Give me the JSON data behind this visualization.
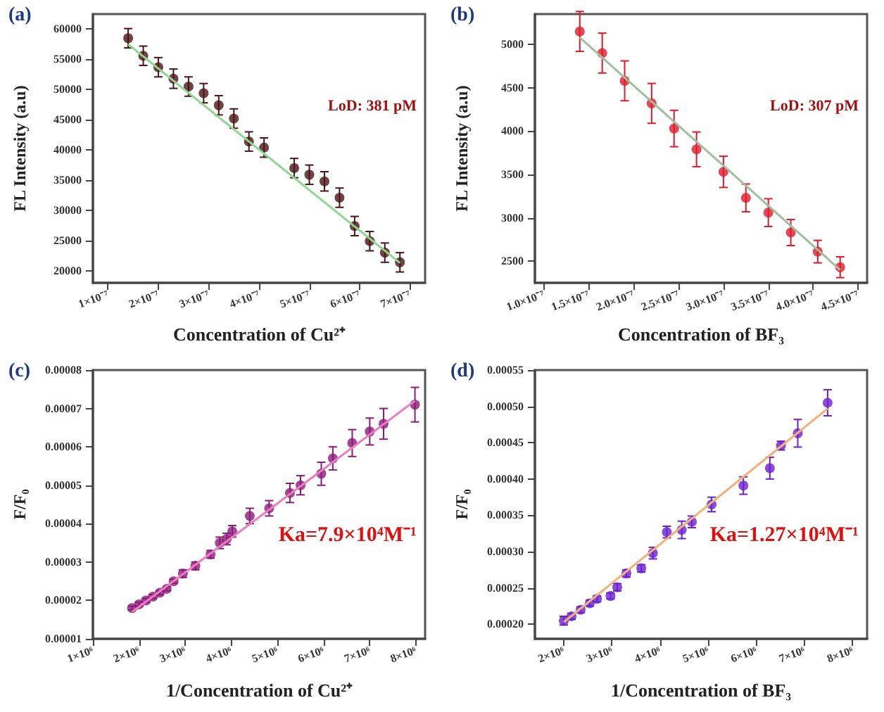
{
  "chart_data": [
    {
      "type": "scatter",
      "xlabel": "Concentration of Cu²⁺",
      "ylabel": "FL Intensity (a.u)",
      "annotations": [
        "(a)",
        "LoD: 381 pM"
      ],
      "marker": "circle",
      "grid": false,
      "xlim": [
        7e-08,
        7.3e-07
      ],
      "xticks": [
        {
          "value": 1e-07,
          "label": "1×10⁻⁷"
        },
        {
          "value": 2e-07,
          "label": "2×10⁻⁷"
        },
        {
          "value": 3e-07,
          "label": "3×10⁻⁷"
        },
        {
          "value": 4e-07,
          "label": "4×10⁻⁷"
        },
        {
          "value": 5e-07,
          "label": "5×10⁻⁷"
        },
        {
          "value": 6e-07,
          "label": "6×10⁻⁷"
        },
        {
          "value": 7e-07,
          "label": "7×10⁻⁷"
        }
      ],
      "ylim": [
        18000,
        62500
      ],
      "yticks": [
        20000,
        25000,
        30000,
        35000,
        40000,
        45000,
        50000,
        55000,
        60000
      ],
      "series": [
        {
          "color": "#4a1414",
          "x": [
            1.4e-07,
            1.7e-07,
            2e-07,
            2.3e-07,
            2.6e-07,
            2.9e-07,
            3.2e-07,
            3.5e-07,
            3.8e-07,
            4.1e-07,
            4.7e-07,
            5e-07,
            5.3e-07,
            5.6e-07,
            5.9e-07,
            6.2e-07,
            6.5e-07,
            6.8e-07
          ],
          "values": [
            58500,
            55600,
            53700,
            51800,
            50500,
            49400,
            47400,
            45200,
            41400,
            40400,
            37000,
            35900,
            34800,
            32100,
            27400,
            24900,
            23000,
            21400
          ],
          "errors": [
            1600,
            1600,
            1600,
            1600,
            1600,
            1600,
            1600,
            1600,
            1600,
            1600,
            1600,
            1600,
            1600,
            1600,
            1600,
            1600,
            1600,
            1600
          ]
        },
        {
          "type": "line",
          "marker": "none",
          "color": "#8fd88f",
          "x": [
            1.4e-07,
            6.8e-07
          ],
          "values": [
            57500,
            21300
          ]
        }
      ]
    },
    {
      "type": "scatter",
      "xlabel": "Concentration of BF₃",
      "ylabel": "FL Intensity (a.u)",
      "annotations": [
        "(b)",
        "LoD: 307 pM"
      ],
      "marker": "circle",
      "grid": false,
      "xlim": [
        9e-08,
        4.6e-07
      ],
      "xticks": [
        {
          "value": 1e-07,
          "label": "1.0×10⁻⁷"
        },
        {
          "value": 1.5e-07,
          "label": "1.5×10⁻⁷"
        },
        {
          "value": 2e-07,
          "label": "2.0×10⁻⁷"
        },
        {
          "value": 2.5e-07,
          "label": "2.5×10⁻⁷"
        },
        {
          "value": 3e-07,
          "label": "3.0×10⁻⁷"
        },
        {
          "value": 3.5e-07,
          "label": "3.5×10⁻⁷"
        },
        {
          "value": 4e-07,
          "label": "4.0×10⁻⁷"
        },
        {
          "value": 4.5e-07,
          "label": "4.5×10⁻⁷"
        }
      ],
      "ylim": [
        2250,
        5350
      ],
      "yticks": [
        2500,
        3000,
        3500,
        4000,
        4500,
        5000
      ],
      "series": [
        {
          "color": "#e0192b",
          "x": [
            1.4e-07,
            1.65e-07,
            1.9e-07,
            2.2e-07,
            2.45e-07,
            2.7e-07,
            3e-07,
            3.25e-07,
            3.5e-07,
            3.75e-07,
            4.05e-07,
            4.3e-07
          ],
          "values": [
            5150,
            4900,
            4580,
            4320,
            4030,
            3790,
            3530,
            3230,
            3060,
            2830,
            2610,
            2430
          ],
          "errors": [
            230,
            230,
            230,
            230,
            210,
            200,
            180,
            160,
            160,
            150,
            130,
            120
          ]
        },
        {
          "type": "line",
          "marker": "none",
          "color": "#9fbf9f",
          "x": [
            1.4e-07,
            4.3e-07
          ],
          "values": [
            5080,
            2400
          ]
        }
      ]
    },
    {
      "type": "scatter",
      "xlabel": "1/Concentration of Cu²⁺",
      "ylabel": "F/F₀",
      "annotations": [
        "(c)",
        "Ka=7.9×10⁴M⁻¹"
      ],
      "marker": "circle",
      "grid": false,
      "xlim": [
        1000000.0,
        8200000.0
      ],
      "xticks": [
        {
          "value": 1000000.0,
          "label": "1×10⁶"
        },
        {
          "value": 2000000.0,
          "label": "2×10⁶"
        },
        {
          "value": 3000000.0,
          "label": "3×10⁶"
        },
        {
          "value": 4000000.0,
          "label": "4×10⁶"
        },
        {
          "value": 5000000.0,
          "label": "5×10⁶"
        },
        {
          "value": 6000000.0,
          "label": "6×10⁶"
        },
        {
          "value": 7000000.0,
          "label": "7×10⁶"
        },
        {
          "value": 8000000.0,
          "label": "8×10⁶"
        }
      ],
      "ylim": [
        1e-05,
        8e-05
      ],
      "yticks": [
        {
          "value": 1e-05,
          "label": "0.00001"
        },
        {
          "value": 2e-05,
          "label": "0.00002"
        },
        {
          "value": 3e-05,
          "label": "0.00003"
        },
        {
          "value": 4e-05,
          "label": "0.00004"
        },
        {
          "value": 5e-05,
          "label": "0.00005"
        },
        {
          "value": 6e-05,
          "label": "0.00006"
        },
        {
          "value": 7e-05,
          "label": "0.00007"
        },
        {
          "value": 8e-05,
          "label": "0.00008"
        }
      ],
      "series": [
        {
          "color": "#8b1a7a",
          "x": [
            1850000.0,
            2000000.0,
            2150000.0,
            2300000.0,
            2450000.0,
            2600000.0,
            2750000.0,
            2950000.0,
            3220000.0,
            3550000.0,
            3750000.0,
            3900000.0,
            4020000.0,
            4400000.0,
            4820000.0,
            5270000.0,
            5500000.0,
            5950000.0,
            6200000.0,
            6620000.0,
            7000000.0,
            7300000.0,
            7980000.0
          ],
          "values": [
            1.8e-05,
            1.9e-05,
            2e-05,
            2.1e-05,
            2.2e-05,
            2.3e-05,
            2.5e-05,
            2.7e-05,
            2.9e-05,
            3.2e-05,
            3.5e-05,
            3.6e-05,
            3.8e-05,
            4.2e-05,
            4.4e-05,
            4.8e-05,
            5e-05,
            5.3e-05,
            5.7e-05,
            6.1e-05,
            6.4e-05,
            6.6e-05,
            7.1e-05
          ],
          "errors": [
            5e-07,
            5e-07,
            5e-07,
            5e-07,
            5e-07,
            5e-07,
            5e-07,
            1e-06,
            1e-06,
            1e-06,
            1.5e-06,
            1.5e-06,
            1.5e-06,
            2e-06,
            2e-06,
            2.5e-06,
            2.5e-06,
            3e-06,
            3e-06,
            3.5e-06,
            3.5e-06,
            4e-06,
            4.5e-06
          ]
        },
        {
          "type": "line",
          "marker": "none",
          "color": "#f07cc0",
          "x": [
            1850000.0,
            7980000.0
          ],
          "values": [
            1.7e-05,
            7.2e-05
          ]
        }
      ]
    },
    {
      "type": "scatter",
      "xlabel": "1/Concentration of BF₃",
      "ylabel": "F/F₀",
      "annotations": [
        "(d)",
        "Ka=1.27×10⁴M⁻¹"
      ],
      "marker": "circle",
      "grid": false,
      "xlim": [
        1400000.0,
        8300000.0
      ],
      "xticks": [
        {
          "value": 2000000.0,
          "label": "2×10⁶"
        },
        {
          "value": 3000000.0,
          "label": "3×10⁶"
        },
        {
          "value": 4000000.0,
          "label": "4×10⁶"
        },
        {
          "value": 5000000.0,
          "label": "5×10⁶"
        },
        {
          "value": 6000000.0,
          "label": "6×10⁶"
        },
        {
          "value": 7000000.0,
          "label": "7×10⁶"
        },
        {
          "value": 8000000.0,
          "label": "8×10⁶"
        }
      ],
      "ylim": [
        0.00018,
        0.00055
      ],
      "yticks": [
        {
          "value": 0.0002,
          "label": "0.00020"
        },
        {
          "value": 0.00025,
          "label": "0.00025"
        },
        {
          "value": 0.0003,
          "label": "0.00030"
        },
        {
          "value": 0.00035,
          "label": "0.00035"
        },
        {
          "value": 0.0004,
          "label": "0.00040"
        },
        {
          "value": 0.00045,
          "label": "0.00045"
        },
        {
          "value": 0.0005,
          "label": "0.00050"
        },
        {
          "value": 0.00055,
          "label": "0.00055"
        }
      ],
      "series": [
        {
          "color": "#6a1fd0",
          "x": [
            2000000.0,
            2160000.0,
            2350000.0,
            2540000.0,
            2690000.0,
            2970000.0,
            3110000.0,
            3300000.0,
            3610000.0,
            3850000.0,
            4140000.0,
            4450000.0,
            4660000.0,
            5070000.0,
            5730000.0,
            6280000.0,
            6510000.0,
            6860000.0,
            7480000.0
          ],
          "values": [
            0.000205,
            0.000211,
            0.00022,
            0.000229,
            0.000235,
            0.000239,
            0.000251,
            0.00027,
            0.000277,
            0.000298,
            0.000327,
            0.00033,
            0.000341,
            0.000365,
            0.000391,
            0.000415,
            0.000446,
            0.000463,
            0.000505
          ],
          "errors": [
            6e-06,
            4e-06,
            4e-06,
            4e-06,
            4e-06,
            4e-06,
            5e-06,
            5e-06,
            5e-06,
            8e-06,
            8e-06,
            1.2e-05,
            8e-06,
            1e-05,
            1.2e-05,
            1.5e-05,
            6e-06,
            1.9e-05,
            1.8e-05
          ]
        },
        {
          "type": "line",
          "marker": "none",
          "color": "#f2b27a",
          "x": [
            2000000.0,
            7480000.0
          ],
          "values": [
            0.000203,
            0.000497
          ]
        }
      ]
    }
  ]
}
